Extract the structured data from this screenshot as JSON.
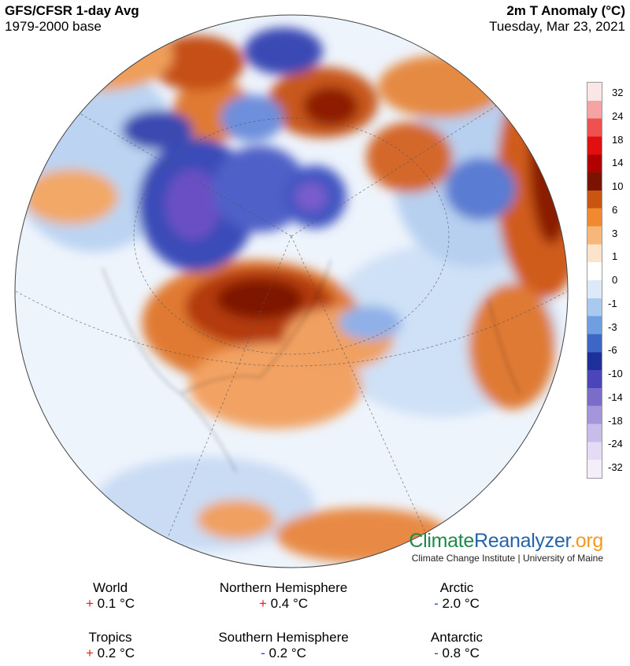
{
  "header": {
    "title_left": "GFS/CFSR 1-day Avg",
    "subtitle_left": "1979-2000 base",
    "title_right": "2m T Anomaly (°C)",
    "subtitle_right": "Tuesday, Mar 23, 2021"
  },
  "colorbar": {
    "labels": [
      "32",
      "24",
      "18",
      "14",
      "10",
      "6",
      "3",
      "1",
      "0",
      "-1",
      "-3",
      "-6",
      "-10",
      "-14",
      "-18",
      "-24",
      "-32"
    ],
    "colors": [
      "#fbe6e6",
      "#f5a3a3",
      "#ef5050",
      "#e01010",
      "#b00000",
      "#7a1400",
      "#c85610",
      "#f08a30",
      "#f7b77a",
      "#fce3cc",
      "#ffffff",
      "#dce9f8",
      "#aac9ef",
      "#6f9fe0",
      "#3d66c6",
      "#1d2f9a",
      "#4a45b8",
      "#7a6cc9",
      "#a596dc",
      "#c8bceb",
      "#e4dcf4",
      "#f3eefa"
    ]
  },
  "branding": {
    "part1": "Climate",
    "part2": "Reanalyzer",
    "part3": ".org",
    "affiliation": "Climate Change Institute | University of Maine"
  },
  "stats": [
    {
      "name": "World",
      "sign": "+",
      "value": "0.1 °C"
    },
    {
      "name": "Northern Hemisphere",
      "sign": "+",
      "value": "0.4 °C"
    },
    {
      "name": "Arctic",
      "sign": "-",
      "value": "2.0 °C"
    },
    {
      "name": "Tropics",
      "sign": "+",
      "value": "0.2 °C"
    },
    {
      "name": "Southern Hemisphere",
      "sign": "-",
      "value": "0.2 °C"
    },
    {
      "name": "Antarctic",
      "sign": "-",
      "value": "0.8 °C"
    }
  ],
  "map_colors": {
    "ocean_base": "#e8f1fb",
    "warm_strong": "#8a1a05",
    "warm": "#c9561a",
    "warm_light": "#f1a560",
    "cool_strong": "#2c2fa0",
    "cool": "#4a6fd0",
    "cool_light": "#a8c8ef"
  }
}
